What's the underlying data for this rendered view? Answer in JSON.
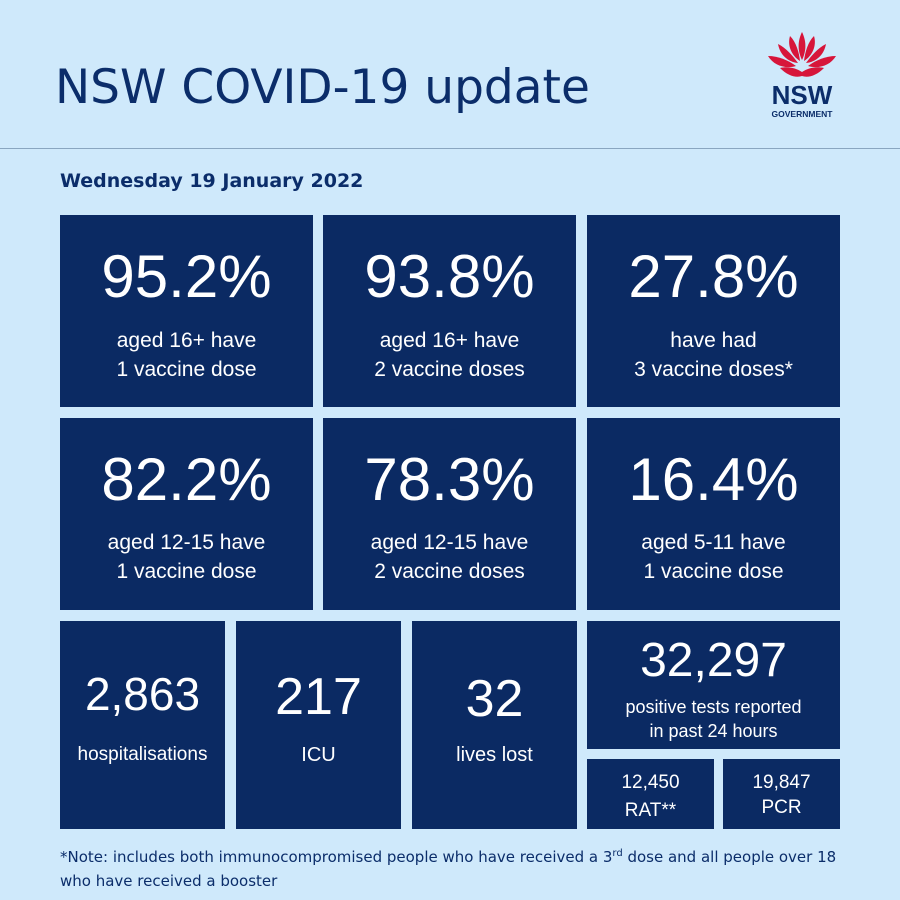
{
  "header": {
    "title": "NSW COVID-19 update",
    "logo": {
      "name": "NSW",
      "subtitle": "GOVERNMENT",
      "icon": "waratah-flower-icon",
      "accent": "#d7153a"
    }
  },
  "date": "Wednesday 19 January 2022",
  "vaccination": [
    {
      "value": "95.2%",
      "line1": "aged 16+ have",
      "line2": "1 vaccine dose"
    },
    {
      "value": "93.8%",
      "line1": "aged 16+ have",
      "line2": "2 vaccine doses"
    },
    {
      "value": "27.8%",
      "line1": "have had",
      "line2": "3 vaccine doses*"
    },
    {
      "value": "82.2%",
      "line1": "aged 12-15 have",
      "line2": "1 vaccine dose"
    },
    {
      "value": "78.3%",
      "line1": "aged 12-15 have",
      "line2": "2 vaccine doses"
    },
    {
      "value": "16.4%",
      "line1": "aged 5-11 have",
      "line2": "1 vaccine dose"
    }
  ],
  "stats": [
    {
      "value": "2,863",
      "label": "hospitalisations"
    },
    {
      "value": "217",
      "label": "ICU"
    },
    {
      "value": "32",
      "label": "lives lost"
    }
  ],
  "positive": {
    "value": "32,297",
    "line1": "positive tests reported",
    "line2": "in past 24 hours",
    "rat": {
      "value": "12,450",
      "label": "RAT**"
    },
    "pcr": {
      "value": "19,847",
      "label": "PCR"
    }
  },
  "note": {
    "before": "*Note: includes both immunocompromised people who have received a 3",
    "sup": "rd",
    "after": " dose and all people over 18 who have received a booster"
  },
  "colors": {
    "background": "#cfe9fb",
    "card": "#0b2a63",
    "text_dark": "#0b2d6a"
  }
}
